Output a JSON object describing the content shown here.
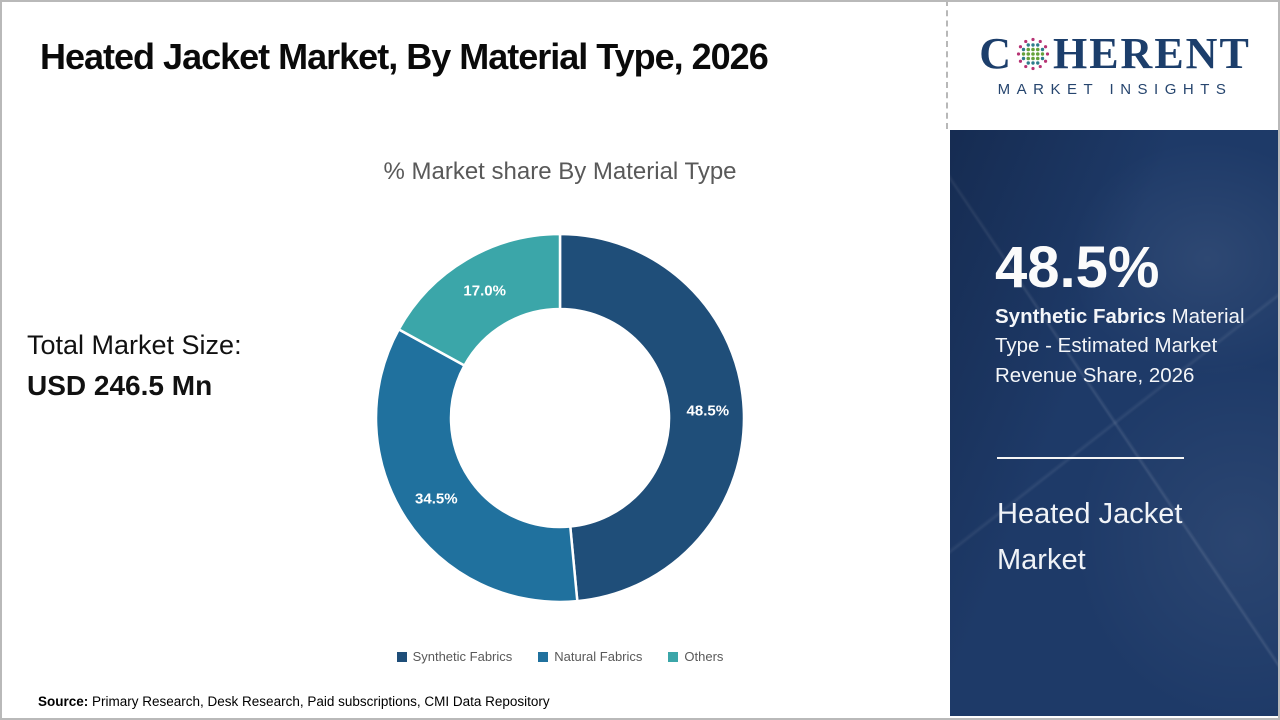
{
  "header": {
    "title": "Heated Jacket Market, By Material Type, 2026"
  },
  "logo": {
    "name_prefix": "C",
    "name_suffix": "HERENT",
    "tagline": "MARKET INSIGHTS"
  },
  "left": {
    "total_label": "Total Market Size:",
    "total_value": "USD 246.5 Mn"
  },
  "chart_data": {
    "type": "pie",
    "donut": true,
    "title": "% Market share By Material Type",
    "categories": [
      "Synthetic Fabrics",
      "Natural Fabrics",
      "Others"
    ],
    "values": [
      48.5,
      34.5,
      17.0
    ],
    "labels": [
      "48.5%",
      "34.5%",
      "17.0%"
    ],
    "colors": [
      "#1f4e79",
      "#20719e",
      "#3ba6a9"
    ],
    "start_angle_deg": 0,
    "direction": "clockwise",
    "legend_position": "bottom"
  },
  "panel": {
    "stat_value": "48.5%",
    "stat_bold": "Synthetic Fabrics",
    "stat_rest": " Material Type - Estimated Market Revenue Share, 2026",
    "market_name": "Heated Jacket Market",
    "bg_color": "#1e3a68"
  },
  "footer": {
    "source_label": "Source:",
    "source_text": " Primary Research, Desk Research, Paid subscriptions, CMI Data Repository"
  }
}
